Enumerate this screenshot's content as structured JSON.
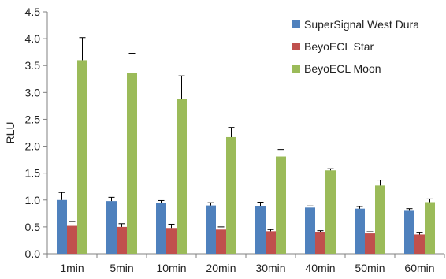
{
  "chart_data": {
    "type": "bar",
    "title": "",
    "xlabel": "",
    "ylabel": "RLU",
    "ylim": [
      0,
      4.5
    ],
    "yticks": [
      0.0,
      0.5,
      1.0,
      1.5,
      2.0,
      2.5,
      3.0,
      3.5,
      4.0,
      4.5
    ],
    "ytick_labels": [
      "0.0",
      "0.5",
      "1.0",
      "1.5",
      "2.0",
      "2.5",
      "3.0",
      "3.5",
      "4.0",
      "4.5"
    ],
    "grid": false,
    "legend_position": "top-right",
    "categories": [
      "1min",
      "5min",
      "10min",
      "20min",
      "30min",
      "40min",
      "50min",
      "60min"
    ],
    "series": [
      {
        "name": "SuperSignal West Dura",
        "color": "#4F81BD",
        "values": [
          1.0,
          0.98,
          0.95,
          0.9,
          0.88,
          0.86,
          0.84,
          0.8
        ],
        "errors": [
          0.14,
          0.07,
          0.04,
          0.05,
          0.08,
          0.03,
          0.04,
          0.04
        ]
      },
      {
        "name": "BeyoECL Star",
        "color": "#C0504D",
        "values": [
          0.52,
          0.5,
          0.48,
          0.45,
          0.42,
          0.4,
          0.38,
          0.36
        ],
        "errors": [
          0.08,
          0.06,
          0.07,
          0.05,
          0.03,
          0.03,
          0.03,
          0.03
        ]
      },
      {
        "name": "BeyoECL Moon",
        "color": "#9BBB59",
        "values": [
          3.6,
          3.36,
          2.88,
          2.17,
          1.81,
          1.55,
          1.27,
          0.96
        ],
        "errors": [
          0.42,
          0.37,
          0.43,
          0.18,
          0.13,
          0.03,
          0.1,
          0.06
        ]
      }
    ]
  }
}
